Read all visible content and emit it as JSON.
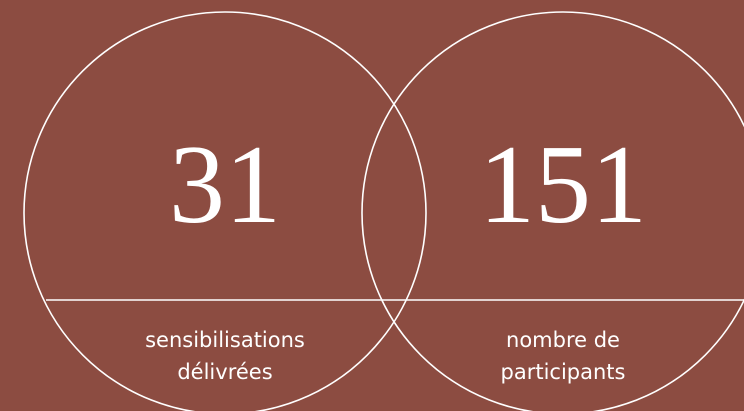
{
  "stats": [
    {
      "value": 31,
      "label": [
        "sensibilisations",
        "délivrées"
      ]
    },
    {
      "value": 151,
      "label": [
        "nombre de",
        "participants"
      ]
    }
  ]
}
